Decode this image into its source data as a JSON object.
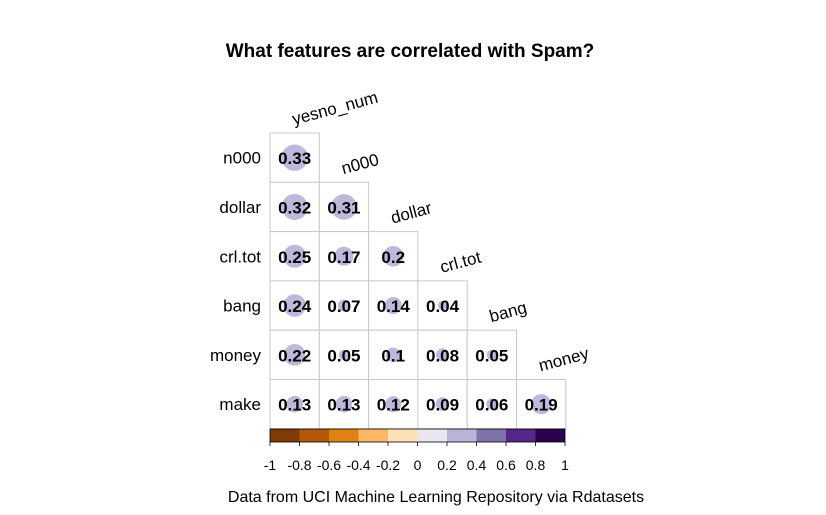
{
  "chart_data": {
    "type": "heatmap",
    "subtype": "correlation-matrix-lower-triangle",
    "title": "What features are correlated with Spam?",
    "caption": "Data from UCI Machine Learning Repository via Rdatasets",
    "row_labels": [
      "n000",
      "dollar",
      "crl.tot",
      "bang",
      "money",
      "make"
    ],
    "column_labels": [
      "yesno_num",
      "n000",
      "dollar",
      "crl.tot",
      "bang",
      "money"
    ],
    "values": [
      [
        0.33
      ],
      [
        0.32,
        0.31
      ],
      [
        0.25,
        0.17,
        0.2
      ],
      [
        0.24,
        0.07,
        0.14,
        0.04
      ],
      [
        0.22,
        0.05,
        0.1,
        0.08,
        0.05
      ],
      [
        0.13,
        0.13,
        0.12,
        0.09,
        0.06,
        0.19
      ]
    ],
    "value_labels": [
      [
        "0.33"
      ],
      [
        "0.32",
        "0.31"
      ],
      [
        "0.25",
        "0.17",
        "0.2"
      ],
      [
        "0.24",
        "0.07",
        "0.14",
        "0.04"
      ],
      [
        "0.22",
        "0.05",
        "0.1",
        "0.08",
        "0.05"
      ],
      [
        "0.13",
        "0.13",
        "0.12",
        "0.09",
        "0.06",
        "0.19"
      ]
    ],
    "color_scale": {
      "range": [
        -1,
        1
      ],
      "tick_labels": [
        "-1",
        "-0.8",
        "-0.6",
        "-0.4",
        "-0.2",
        "0",
        "0.2",
        "0.4",
        "0.6",
        "0.8",
        "1"
      ],
      "bins": [
        {
          "from": -1.0,
          "to": -0.8,
          "color": "#7f3b08"
        },
        {
          "from": -0.8,
          "to": -0.6,
          "color": "#b35806"
        },
        {
          "from": -0.6,
          "to": -0.4,
          "color": "#e08214"
        },
        {
          "from": -0.4,
          "to": -0.2,
          "color": "#fdb863"
        },
        {
          "from": -0.2,
          "to": 0.0,
          "color": "#fee0b6"
        },
        {
          "from": 0.0,
          "to": 0.2,
          "color": "#e8e7f1"
        },
        {
          "from": 0.2,
          "to": 0.4,
          "color": "#b8b5d8"
        },
        {
          "from": 0.4,
          "to": 0.6,
          "color": "#8073ac"
        },
        {
          "from": 0.6,
          "to": 0.8,
          "color": "#542788"
        },
        {
          "from": 0.8,
          "to": 1.0,
          "color": "#2d004b"
        }
      ]
    },
    "colors": {
      "circle_positive": "#bcb9dc",
      "cell_border": "#c8c8c8",
      "text": "#000000"
    },
    "legend_placement": "bottom"
  }
}
